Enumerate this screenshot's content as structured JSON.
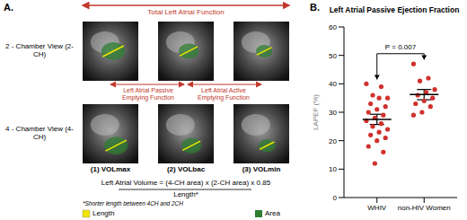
{
  "panel_a": {
    "label": "A.",
    "top_label": "Total Left Atrial Function",
    "row_labels": [
      "2 - Chamber View (2-CH)",
      "4 - Chamber View (4-CH)"
    ],
    "passive_label": "Left Atrial Passive Emptying Function",
    "active_label": "Left Atrial Active Emptying Function",
    "column_labels": [
      "(1) VOLmax",
      "(2) VOLbac",
      "(3) VOLmin"
    ],
    "formula": {
      "numerator": "Left Atrial Volume = (4-CH area) x (2-CH area) x 0.85",
      "denominator": "Length*",
      "footnote": "*Shorter length between 4CH and 2CH"
    },
    "legend": [
      "Length",
      "Area"
    ]
  },
  "chart_data": {
    "type": "scatter",
    "panel_label": "B.",
    "title": "Left Atrial Passive Ejection Fraction",
    "y_label": "LAPEF (%)",
    "categories": [
      "WHIV",
      "non-HIV Women"
    ],
    "values": [
      [
        40,
        39,
        36,
        35,
        35,
        33,
        32,
        31,
        30,
        29,
        28,
        27,
        26,
        25,
        24,
        23,
        22,
        21,
        20,
        18,
        16,
        12
      ],
      [
        47,
        42,
        41,
        38,
        37,
        36,
        35,
        34,
        33,
        32,
        30,
        29
      ]
    ],
    "color": "#d0312d",
    "mean": [
      27.5,
      36.2
    ],
    "sem": [
      1.8,
      1.8
    ],
    "annotation": "P = 0.007",
    "ylim": [
      0,
      60
    ],
    "yticks": [
      0,
      10,
      20,
      30,
      40,
      50,
      60
    ]
  }
}
